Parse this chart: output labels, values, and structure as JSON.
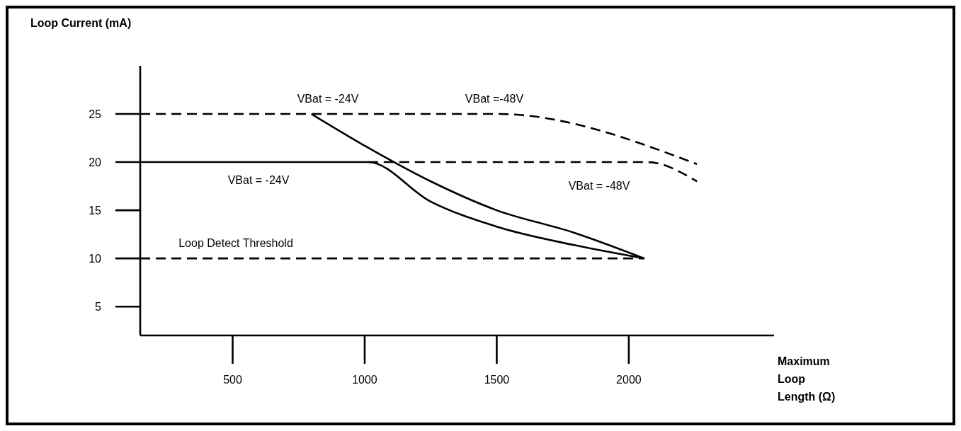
{
  "chart_data": {
    "type": "line",
    "ylabel": "Loop Current (mA)",
    "xlabel": "Maximum Loop Length (Ω)",
    "xlim": [
      150,
      2550
    ],
    "ylim": [
      2,
      30
    ],
    "xticks": [
      500,
      1000,
      1500,
      2000
    ],
    "yticks": [
      5,
      10,
      15,
      20,
      25
    ],
    "grid": false,
    "series": [
      {
        "color": "#000000",
        "line_style": "dashed",
        "x": [
          150,
          798,
          1500,
          2258
        ],
        "values": [
          25,
          25,
          25,
          19.8
        ]
      },
      {
        "color": "#000000",
        "line_style": "solid",
        "x": [
          798,
          1000,
          1250,
          1500,
          1790,
          2059
        ],
        "values": [
          25,
          21.7,
          18,
          15,
          12.7,
          10
        ]
      },
      {
        "color": "#000000",
        "line_style": "solid",
        "x": [
          150,
          1013,
          1250,
          1500,
          1790,
          2059
        ],
        "values": [
          20,
          20,
          15.9,
          13.3,
          11.4,
          10
        ]
      },
      {
        "color": "#000000",
        "line_style": "dashed",
        "x": [
          1013,
          2070,
          2258
        ],
        "values": [
          20,
          20,
          18
        ]
      },
      {
        "color": "#000000",
        "line_style": "dashed",
        "x": [
          150,
          2059
        ],
        "values": [
          10,
          10
        ]
      }
    ],
    "annotations": [
      "VBat = -24V",
      "VBat =-48V",
      "VBat = -24V",
      "VBat = -48V",
      "Loop Detect Threshold"
    ]
  }
}
